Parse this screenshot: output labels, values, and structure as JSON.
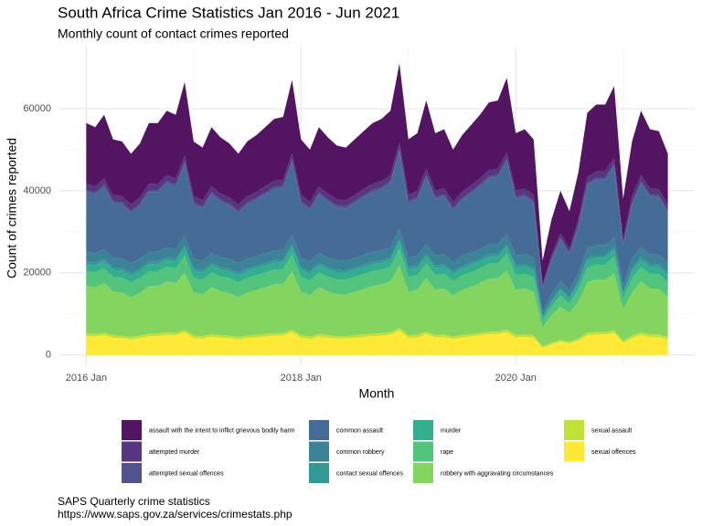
{
  "chart_data": {
    "type": "stacked_area",
    "title": "South Africa Crime Statistics Jan 2016 - Jun 2021",
    "subtitle": "Monthly count of contact crimes reported",
    "x_label": "Month",
    "y_label": "Count of crimes reported",
    "caption": [
      "SAPS Quarterly crime statistics",
      "https://www.saps.gov.za/services/crimestats.php"
    ],
    "legend": "bottom",
    "grid": true,
    "xlim": [
      "2015-10",
      "2021-09"
    ],
    "xticks": [
      {
        "value": "2016-01",
        "label": "2016 Jan"
      },
      {
        "value": "2018-01",
        "label": "2018 Jan"
      },
      {
        "value": "2020-01",
        "label": "2020 Jan"
      }
    ],
    "ylim": [
      -2500,
      75000
    ],
    "yticks": [
      0,
      20000,
      40000,
      60000
    ],
    "x": [
      "2016-01",
      "2016-02",
      "2016-03",
      "2016-04",
      "2016-05",
      "2016-06",
      "2016-07",
      "2016-08",
      "2016-09",
      "2016-10",
      "2016-11",
      "2016-12",
      "2017-01",
      "2017-02",
      "2017-03",
      "2017-04",
      "2017-05",
      "2017-06",
      "2017-07",
      "2017-08",
      "2017-09",
      "2017-10",
      "2017-11",
      "2017-12",
      "2018-01",
      "2018-02",
      "2018-03",
      "2018-04",
      "2018-05",
      "2018-06",
      "2018-07",
      "2018-08",
      "2018-09",
      "2018-10",
      "2018-11",
      "2018-12",
      "2019-01",
      "2019-02",
      "2019-03",
      "2019-04",
      "2019-05",
      "2019-06",
      "2019-07",
      "2019-08",
      "2019-09",
      "2019-10",
      "2019-11",
      "2019-12",
      "2020-01",
      "2020-02",
      "2020-03",
      "2020-04",
      "2020-05",
      "2020-06",
      "2020-07",
      "2020-08",
      "2020-09",
      "2020-10",
      "2020-11",
      "2020-12",
      "2021-01",
      "2021-02",
      "2021-03",
      "2021-04",
      "2021-05",
      "2021-06"
    ],
    "series": [
      {
        "name": "assault with the intent to inflict grievous bodily harm",
        "color": "#440154",
        "values": [
          14800,
          14400,
          15500,
          13500,
          13300,
          12400,
          13100,
          14800,
          14800,
          15700,
          15500,
          17900,
          13300,
          12800,
          14400,
          13700,
          13100,
          12400,
          13300,
          13800,
          14400,
          15100,
          15300,
          17900,
          13500,
          12700,
          14400,
          13700,
          13100,
          12800,
          13500,
          14100,
          14800,
          15100,
          15700,
          19300,
          13500,
          14000,
          16600,
          14000,
          14400,
          12700,
          13800,
          14700,
          15500,
          16400,
          16600,
          18200,
          14000,
          14400,
          13500,
          5800,
          8700,
          10300,
          9100,
          11500,
          15600,
          16300,
          16300,
          17500,
          9900,
          13300,
          15700,
          14400,
          14100,
          12400
        ]
      },
      {
        "name": "attempted murder",
        "color": "#482576",
        "values": [
          1500,
          1500,
          1500,
          1500,
          1500,
          1500,
          1500,
          1500,
          1500,
          1500,
          1500,
          1500,
          1500,
          1500,
          1500,
          1500,
          1500,
          1500,
          1500,
          1500,
          1500,
          1500,
          1500,
          1500,
          1500,
          1500,
          1500,
          1500,
          1500,
          1500,
          1500,
          1500,
          1500,
          1500,
          1500,
          1500,
          1500,
          1500,
          1500,
          1500,
          1500,
          1500,
          1500,
          1500,
          1500,
          1500,
          1500,
          1500,
          1500,
          1500,
          1500,
          700,
          900,
          1100,
          1000,
          1300,
          1500,
          1500,
          1500,
          1500,
          1100,
          1500,
          1500,
          1500,
          1500,
          1500
        ]
      },
      {
        "name": "attempted sexual offences",
        "color": "#414487",
        "values": [
          500,
          500,
          500,
          500,
          500,
          500,
          500,
          500,
          500,
          500,
          500,
          500,
          500,
          500,
          500,
          500,
          500,
          500,
          500,
          500,
          500,
          500,
          500,
          500,
          500,
          500,
          500,
          500,
          500,
          500,
          500,
          500,
          500,
          500,
          500,
          500,
          500,
          500,
          500,
          500,
          500,
          500,
          500,
          500,
          500,
          500,
          500,
          500,
          500,
          500,
          500,
          200,
          300,
          400,
          300,
          400,
          500,
          500,
          500,
          500,
          400,
          500,
          500,
          500,
          500,
          500
        ]
      },
      {
        "name": "common assault",
        "color": "#35608d",
        "values": [
          14600,
          14300,
          15200,
          13300,
          13200,
          12200,
          13000,
          14600,
          14600,
          15600,
          15200,
          17600,
          13200,
          12700,
          14300,
          13500,
          13000,
          12200,
          13200,
          13600,
          14300,
          14900,
          15100,
          17800,
          13300,
          12500,
          14300,
          13500,
          12800,
          12700,
          13300,
          14000,
          14600,
          14900,
          15600,
          19000,
          13300,
          13800,
          16400,
          13800,
          14100,
          12500,
          13600,
          14400,
          15200,
          16200,
          16400,
          17900,
          13800,
          14100,
          13300,
          5800,
          8400,
          10100,
          8900,
          11300,
          15400,
          16000,
          16000,
          17300,
          9700,
          13200,
          15600,
          14100,
          14000,
          12200
        ]
      },
      {
        "name": "common robbery",
        "color": "#2a788e",
        "values": [
          2400,
          2400,
          2400,
          2400,
          2400,
          2400,
          2400,
          2400,
          2400,
          2400,
          2400,
          2400,
          2400,
          2400,
          2400,
          2400,
          2400,
          2400,
          2400,
          2400,
          2400,
          2400,
          2400,
          2400,
          2400,
          2400,
          2400,
          2400,
          2400,
          2400,
          2400,
          2400,
          2400,
          2400,
          2400,
          2400,
          2400,
          2400,
          2400,
          2400,
          2400,
          2400,
          2400,
          2400,
          2400,
          2400,
          2400,
          2400,
          2400,
          2400,
          2400,
          1100,
          1400,
          1800,
          1600,
          2000,
          2400,
          2400,
          2400,
          2400,
          1700,
          2400,
          2400,
          2400,
          2400,
          2400
        ]
      },
      {
        "name": "contact sexual offences",
        "color": "#21908c",
        "values": [
          600,
          600,
          600,
          600,
          600,
          600,
          600,
          600,
          600,
          600,
          600,
          600,
          600,
          600,
          600,
          600,
          600,
          600,
          600,
          600,
          600,
          600,
          600,
          600,
          600,
          600,
          600,
          600,
          600,
          600,
          600,
          600,
          600,
          600,
          600,
          600,
          600,
          600,
          600,
          600,
          600,
          600,
          600,
          600,
          600,
          600,
          600,
          600,
          600,
          600,
          600,
          300,
          400,
          500,
          400,
          500,
          600,
          600,
          600,
          600,
          400,
          600,
          600,
          600,
          600,
          600
        ]
      },
      {
        "name": "murder",
        "color": "#22a884",
        "values": [
          1700,
          1700,
          1700,
          1700,
          1700,
          1700,
          1700,
          1700,
          1700,
          1700,
          1700,
          1700,
          1700,
          1700,
          1700,
          1700,
          1700,
          1700,
          1700,
          1700,
          1700,
          1700,
          1700,
          1700,
          1700,
          1700,
          1700,
          1700,
          1700,
          1700,
          1700,
          1700,
          1700,
          1700,
          1700,
          1700,
          1700,
          1700,
          1700,
          1700,
          1700,
          1700,
          1700,
          1700,
          1700,
          1700,
          1700,
          1700,
          1700,
          1700,
          1700,
          800,
          1000,
          1300,
          1100,
          1400,
          1700,
          1700,
          1700,
          1700,
          1200,
          1700,
          1700,
          1700,
          1700,
          1700
        ]
      },
      {
        "name": "rape",
        "color": "#43bf71",
        "values": [
          3600,
          3600,
          3600,
          3600,
          3600,
          3600,
          3600,
          3600,
          3600,
          3600,
          3600,
          4200,
          3600,
          3600,
          3600,
          3600,
          3600,
          3600,
          3600,
          3600,
          3600,
          3600,
          3600,
          4200,
          3600,
          3600,
          3600,
          3600,
          3600,
          3600,
          3600,
          3600,
          3600,
          3600,
          3600,
          4200,
          3600,
          3600,
          3600,
          3600,
          3600,
          3600,
          3600,
          3600,
          3600,
          3600,
          3600,
          4200,
          3600,
          3600,
          3600,
          1600,
          2200,
          2700,
          2300,
          3100,
          3600,
          3600,
          3600,
          4200,
          2500,
          3600,
          3600,
          3600,
          3600,
          3600
        ]
      },
      {
        "name": "robbery with aggravating circumstances",
        "color": "#7ad151",
        "values": [
          11600,
          11400,
          12100,
          10600,
          10500,
          9700,
          10400,
          11600,
          11600,
          12400,
          12100,
          14000,
          10500,
          10100,
          11400,
          10700,
          10400,
          9700,
          10500,
          10900,
          11400,
          11900,
          12000,
          14200,
          10600,
          10000,
          11400,
          10700,
          10200,
          10100,
          10600,
          11100,
          11600,
          11900,
          12400,
          15200,
          10600,
          11000,
          13000,
          11000,
          11200,
          10000,
          10900,
          11500,
          12100,
          12900,
          13000,
          14300,
          11000,
          11200,
          10600,
          4600,
          6700,
          8100,
          7100,
          9000,
          12300,
          12800,
          12800,
          13800,
          7700,
          10500,
          12400,
          11200,
          11100,
          9700
        ]
      },
      {
        "name": "sexual assault",
        "color": "#bbdf27",
        "values": [
          600,
          600,
          600,
          600,
          600,
          600,
          600,
          600,
          600,
          600,
          600,
          600,
          600,
          600,
          600,
          600,
          600,
          600,
          600,
          600,
          600,
          600,
          600,
          600,
          600,
          600,
          600,
          600,
          600,
          600,
          600,
          600,
          600,
          600,
          600,
          600,
          600,
          600,
          600,
          600,
          600,
          600,
          600,
          600,
          600,
          600,
          600,
          600,
          600,
          600,
          600,
          300,
          400,
          500,
          400,
          500,
          600,
          600,
          600,
          600,
          400,
          600,
          600,
          600,
          600,
          600
        ]
      },
      {
        "name": "sexual offences",
        "color": "#fde725",
        "values": [
          4600,
          4500,
          4800,
          4200,
          4100,
          3800,
          4100,
          4600,
          4600,
          4900,
          4800,
          5500,
          4100,
          4000,
          4500,
          4200,
          4100,
          3800,
          4100,
          4300,
          4500,
          4700,
          4700,
          5600,
          4200,
          3900,
          4500,
          4200,
          4000,
          4000,
          4200,
          4400,
          4600,
          4700,
          4900,
          6000,
          4200,
          4300,
          5100,
          4300,
          4400,
          3900,
          4300,
          4500,
          4800,
          5100,
          5100,
          5600,
          4300,
          4400,
          4200,
          1800,
          2600,
          3200,
          2800,
          3500,
          4800,
          5000,
          5000,
          5400,
          3000,
          4100,
          4900,
          4400,
          4400,
          3800
        ]
      }
    ]
  }
}
